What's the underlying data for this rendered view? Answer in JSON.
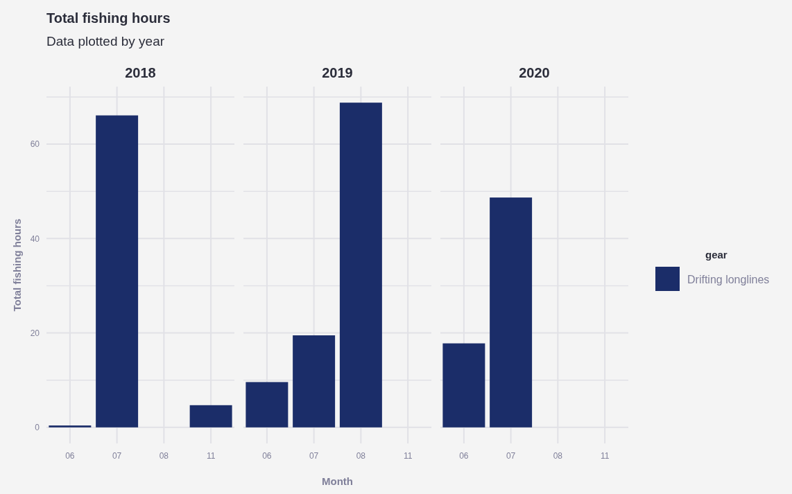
{
  "chart_data": [
    {
      "type": "bar",
      "title": "2018",
      "annotations": [
        "Total fishing hours",
        "Data plotted by year"
      ],
      "ylabel": "Total fishing hours",
      "categories": [
        "06",
        "07",
        "08",
        "11"
      ],
      "values": [
        0.4,
        66.1,
        null,
        4.7
      ],
      "color": "#1b2d69",
      "ylim": [
        -3.4,
        72.2
      ],
      "yticks": [
        0,
        {
          "value": 10,
          "label": null
        },
        20,
        {
          "value": 30,
          "label": null
        },
        40,
        {
          "value": 50,
          "label": null
        },
        60,
        {
          "value": 70,
          "label": null
        }
      ],
      "grid": true
    },
    {
      "type": "bar",
      "title": "2019",
      "xlabel": "Month",
      "categories": [
        "06",
        "07",
        "08",
        "11"
      ],
      "values": [
        9.6,
        19.5,
        68.8,
        null
      ],
      "color": "#1b2d69",
      "ylim": [
        -3.4,
        72.2
      ],
      "yticks": [
        0,
        {
          "value": 10,
          "label": null
        },
        20,
        {
          "value": 30,
          "label": null
        },
        40,
        {
          "value": 50,
          "label": null
        },
        60,
        {
          "value": 70,
          "label": null
        }
      ],
      "grid": true,
      "tick_labels": "x"
    },
    {
      "type": "bar",
      "title": "2020",
      "legend_title": "gear",
      "legend": "right",
      "categories": [
        "06",
        "07",
        "08",
        "11"
      ],
      "series": [
        {
          "name": "Drifting longlines",
          "color": "#1b2d69",
          "values": [
            17.8,
            48.7,
            null,
            null
          ]
        }
      ],
      "ylim": [
        -3.4,
        72.2
      ],
      "yticks": [
        0,
        {
          "value": 10,
          "label": null
        },
        20,
        {
          "value": 30,
          "label": null
        },
        40,
        {
          "value": 50,
          "label": null
        },
        60,
        {
          "value": 70,
          "label": null
        }
      ],
      "grid": true,
      "tick_labels": "x"
    }
  ]
}
